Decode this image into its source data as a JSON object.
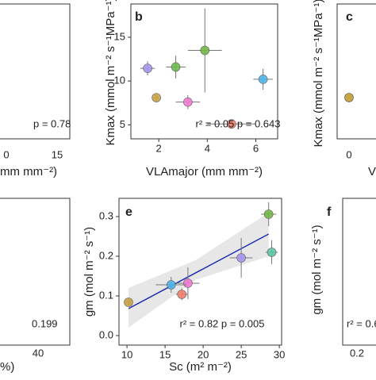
{
  "chart_data": [
    {
      "type": "scatter",
      "panel": "b",
      "xlabel": "VLAmajor (mm mm⁻²)",
      "ylabel": "Kmax (mmol m⁻² s⁻¹MPa⁻¹)",
      "annotation": "r² = 0.05  p = 0.643",
      "x": [
        1.54,
        1.9,
        2.7,
        3.2,
        3.9,
        6.3,
        5.0
      ],
      "values": [
        11.45,
        8.1,
        11.6,
        7.6,
        13.5,
        10.2,
        5.1
      ],
      "xerr": [
        0.3,
        0.15,
        0.4,
        0.5,
        0.7,
        0.4,
        1.0
      ],
      "yerr": [
        0.8,
        0.5,
        1.3,
        0.8,
        4.8,
        1.2,
        0.5
      ],
      "colors": [
        "#a996ee",
        "#c9a447",
        "#6dbd4f",
        "#f07ad2",
        "#73b845",
        "#4fb3ea",
        "#f27e6e"
      ],
      "xlim": [
        0.85,
        6.9
      ],
      "ylim": [
        3.4,
        18.8
      ],
      "xticks": [
        2,
        4,
        6
      ],
      "yticks": [
        5,
        10,
        15
      ]
    },
    {
      "type": "scatter",
      "panel": "e",
      "xlabel": "Sc (m² m⁻²)",
      "ylabel": "gm (mol m⁻² s⁻¹)",
      "annotation": "r² = 0.82  p = 0.005",
      "x": [
        28.6,
        29.0,
        25.0,
        18.0,
        15.8,
        17.2,
        10.2
      ],
      "values": [
        0.306,
        0.21,
        0.196,
        0.132,
        0.128,
        0.104,
        0.084
      ],
      "xerr": [
        1.0,
        0.8,
        1.5,
        1.5,
        2.0,
        0.8,
        0.4
      ],
      "yerr": [
        0.03,
        0.03,
        0.05,
        0.04,
        0.02,
        0.015,
        0.01
      ],
      "colors": [
        "#73b845",
        "#5cc6a8",
        "#a996ee",
        "#f07ad2",
        "#4fb3ea",
        "#f27e6e",
        "#c9a447"
      ],
      "fit": {
        "x": [
          10.2,
          28.6
        ],
        "values": [
          0.068,
          0.256
        ],
        "color": "#1a2fb0"
      },
      "band": {
        "x": [
          10.2,
          19.0,
          28.6
        ],
        "lower": [
          0.02,
          0.14,
          0.2
        ],
        "upper": [
          0.12,
          0.19,
          0.31
        ]
      },
      "xlim": [
        8.95,
        30.3
      ],
      "ylim": [
        -0.024,
        0.346
      ],
      "xticks": [
        10,
        15,
        20,
        25,
        30
      ],
      "yticks": [
        {
          "value": 0,
          "label": "0.0"
        },
        0.1,
        0.2,
        0.3
      ]
    }
  ],
  "fragments": {
    "a_p": "p = 0.78",
    "a_t0": "0",
    "a_t15": "15",
    "a_xl": "mm mm⁻²)",
    "c_label": "c",
    "c_yl": "Kmax (mmol m⁻² s⁻¹MPa⁻¹)",
    "c_t0": "0",
    "c_xl": "V",
    "d_t40": "40",
    "d_xl": "%)",
    "d_p": "0.199",
    "f_label": "f",
    "f_yl": "gm (mol m⁻² s⁻¹)",
    "f_t02": "0.2",
    "f_r": "r² = 0.6"
  }
}
